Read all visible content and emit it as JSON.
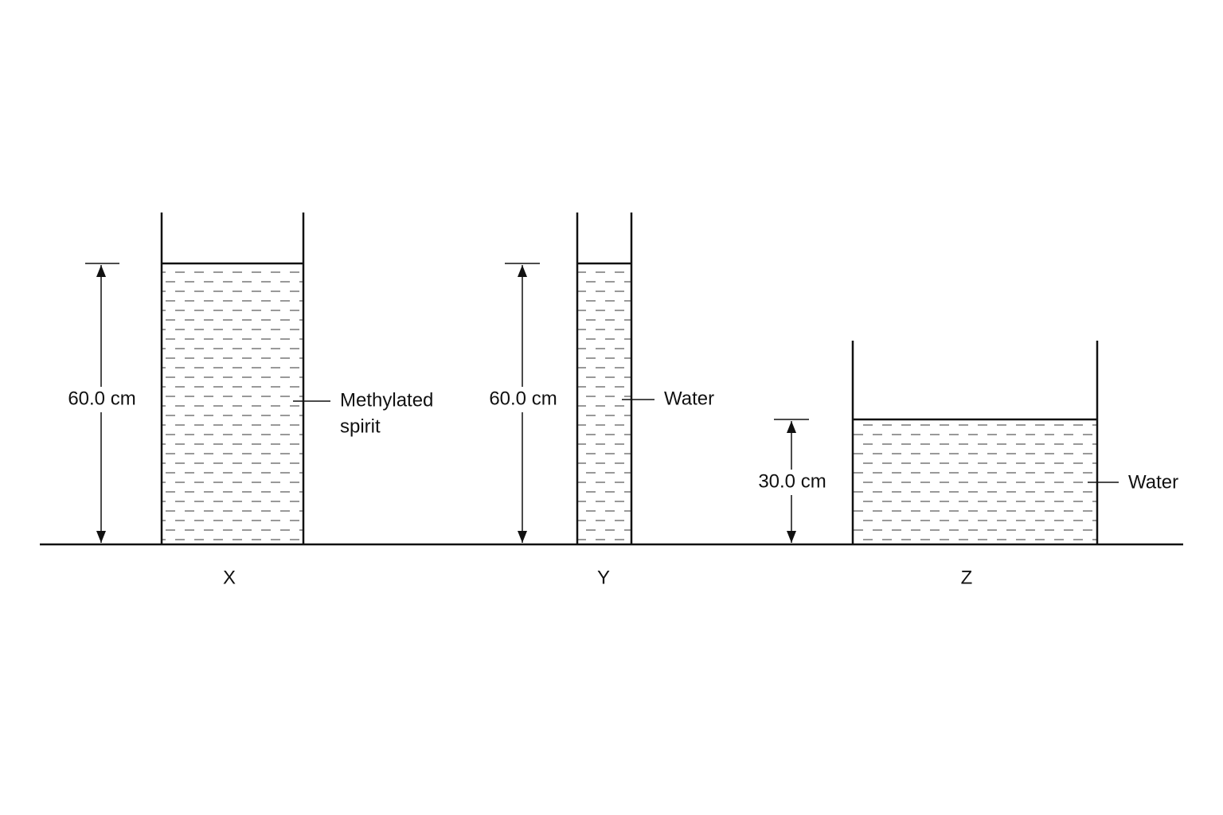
{
  "containers": [
    {
      "label": "X",
      "height": "60.0 cm",
      "liquid_lines": [
        "Methylated",
        "spirit"
      ]
    },
    {
      "label": "Y",
      "height": "60.0 cm",
      "liquid_lines": [
        "Water"
      ]
    },
    {
      "label": "Z",
      "height": "30.0 cm",
      "liquid_lines": [
        "Water"
      ]
    }
  ]
}
